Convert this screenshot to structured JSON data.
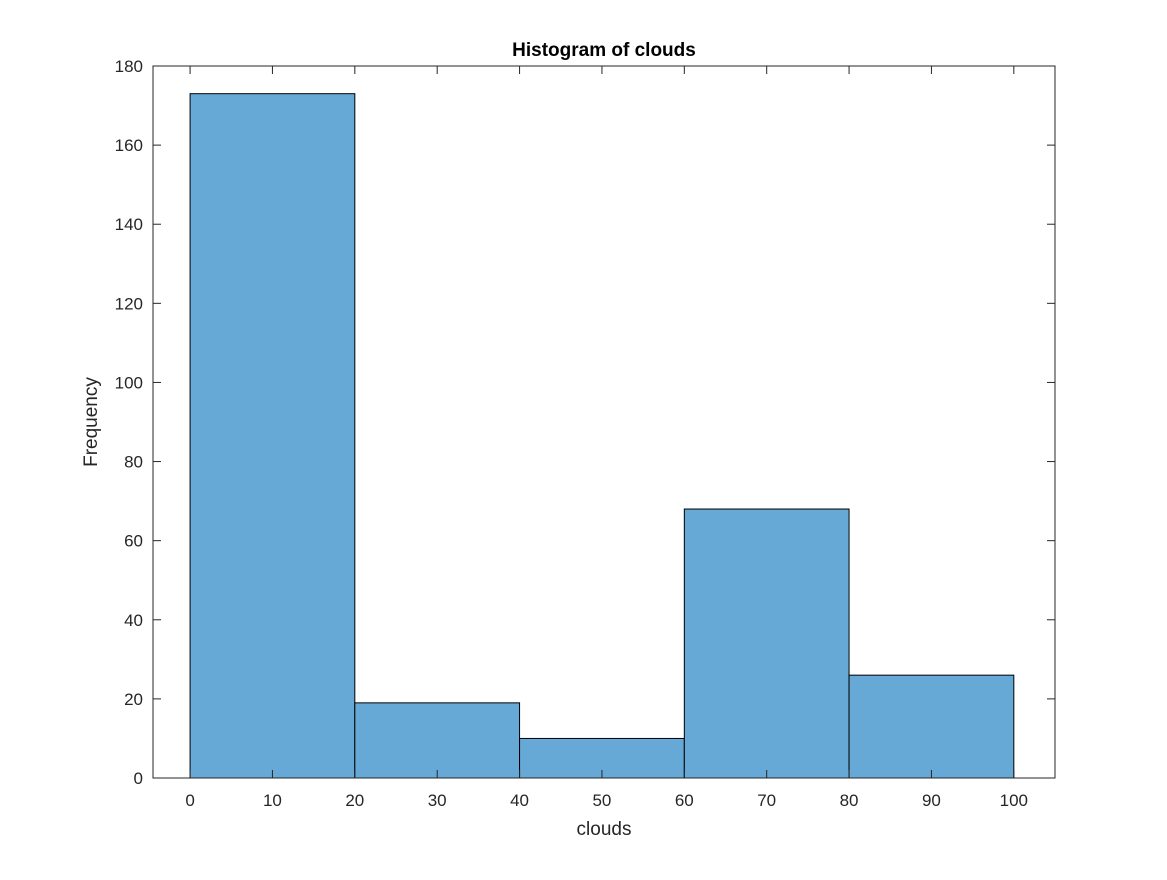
{
  "chart_data": {
    "type": "bar",
    "title": "Histogram of clouds",
    "xlabel": "clouds",
    "ylabel": "Frequency",
    "bin_edges": [
      0,
      20,
      40,
      60,
      80,
      100
    ],
    "values": [
      173,
      19,
      10,
      68,
      26
    ],
    "xlim": [
      -4.5,
      105
    ],
    "ylim": [
      0,
      180
    ],
    "xticks": [
      0,
      10,
      20,
      30,
      40,
      50,
      60,
      70,
      80,
      90,
      100
    ],
    "yticks": [
      0,
      20,
      40,
      60,
      80,
      100,
      120,
      140,
      160,
      180
    ],
    "bar_color": "#66a9d7",
    "edge_color": "#000000",
    "grid": false,
    "box": true
  }
}
